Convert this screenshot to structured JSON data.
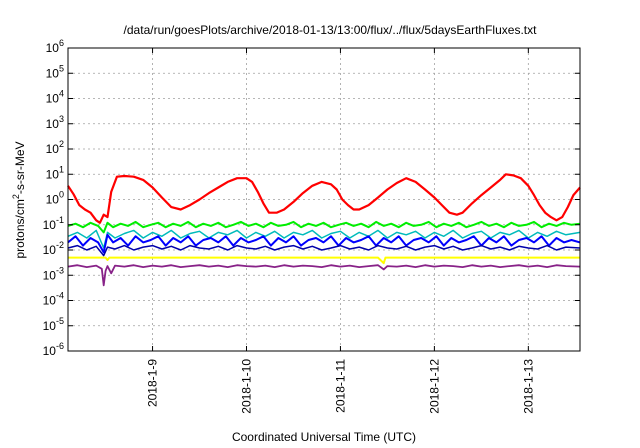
{
  "chart_data": {
    "type": "line",
    "title": "/data/run/goesPlots/archive/2018-01-13/13:00/flux/../flux/5daysEarthFluxes.txt",
    "xlabel": "Coordinated Universal Time (UTC)",
    "ylabel": "protons/cm2-s-sr-MeV",
    "ylabel_parts": {
      "pre": "protons/cm",
      "sup": "2",
      "post": "-s-sr-MeV"
    },
    "yscale": "log",
    "ylim": [
      1e-06,
      1000000.0
    ],
    "xlim": [
      8.1,
      13.55
    ],
    "x_unit": "day of January 2018",
    "grid": "dashed",
    "y_ticks": [
      {
        "base": "10",
        "exp": "-6",
        "value": 1e-06
      },
      {
        "base": "10",
        "exp": "-5",
        "value": 1e-05
      },
      {
        "base": "10",
        "exp": "-4",
        "value": 0.0001
      },
      {
        "base": "10",
        "exp": "-3",
        "value": 0.001
      },
      {
        "base": "10",
        "exp": "-2",
        "value": 0.01
      },
      {
        "base": "10",
        "exp": "-1",
        "value": 0.1
      },
      {
        "base": "10",
        "exp": "0",
        "value": 1
      },
      {
        "base": "10",
        "exp": "1",
        "value": 10
      },
      {
        "base": "10",
        "exp": "2",
        "value": 100
      },
      {
        "base": "10",
        "exp": "3",
        "value": 1000
      },
      {
        "base": "10",
        "exp": "4",
        "value": 10000
      },
      {
        "base": "10",
        "exp": "5",
        "value": 100000
      },
      {
        "base": "10",
        "exp": "6",
        "value": 1000000
      }
    ],
    "x_ticks": [
      {
        "label": "2018-1-9",
        "value": 9
      },
      {
        "label": "2018-1-10",
        "value": 10
      },
      {
        "label": "2018-1-11",
        "value": 11
      },
      {
        "label": "2018-1-12",
        "value": 12
      },
      {
        "label": "2018-1-13",
        "value": 13
      }
    ],
    "series": [
      {
        "color": "#ff0000",
        "width": 2.2,
        "x": [
          8.1,
          8.16,
          8.22,
          8.28,
          8.34,
          8.4,
          8.44,
          8.48,
          8.52,
          8.56,
          8.62,
          8.7,
          8.8,
          8.9,
          9.0,
          9.1,
          9.2,
          9.3,
          9.4,
          9.5,
          9.6,
          9.7,
          9.8,
          9.9,
          10.0,
          10.06,
          10.12,
          10.18,
          10.24,
          10.32,
          10.4,
          10.5,
          10.6,
          10.7,
          10.8,
          10.9,
          10.96,
          11.02,
          11.08,
          11.14,
          11.2,
          11.3,
          11.4,
          11.5,
          11.6,
          11.7,
          11.8,
          11.9,
          12.0,
          12.08,
          12.16,
          12.24,
          12.3,
          12.4,
          12.5,
          12.6,
          12.7,
          12.76,
          12.84,
          12.92,
          13.0,
          13.06,
          13.12,
          13.18,
          13.24,
          13.3,
          13.36,
          13.42,
          13.48,
          13.55
        ],
        "y": [
          3.5,
          1.6,
          0.6,
          0.4,
          0.3,
          0.15,
          0.12,
          0.25,
          0.2,
          2.0,
          8.0,
          8.5,
          8.0,
          6.0,
          3.0,
          1.2,
          0.5,
          0.4,
          0.6,
          1.0,
          1.8,
          3.0,
          5.0,
          7.0,
          7.0,
          5.0,
          2.0,
          0.7,
          0.3,
          0.3,
          0.4,
          0.8,
          1.8,
          3.5,
          5.0,
          4.0,
          2.5,
          1.0,
          0.6,
          0.4,
          0.4,
          0.6,
          1.2,
          2.5,
          4.5,
          7.0,
          5.0,
          2.5,
          1.2,
          0.6,
          0.3,
          0.25,
          0.3,
          0.7,
          1.5,
          3.0,
          6.0,
          10.0,
          9.0,
          7.0,
          3.5,
          1.5,
          0.6,
          0.3,
          0.2,
          0.15,
          0.2,
          0.5,
          1.5,
          3.0
        ]
      },
      {
        "color": "#00ee00",
        "width": 2.0,
        "x": [
          8.1,
          8.18,
          8.26,
          8.34,
          8.42,
          8.48,
          8.52,
          8.58,
          8.66,
          8.74,
          8.82,
          8.9,
          8.98,
          9.06,
          9.14,
          9.22,
          9.3,
          9.38,
          9.46,
          9.54,
          9.62,
          9.7,
          9.78,
          9.86,
          9.94,
          10.02,
          10.1,
          10.18,
          10.26,
          10.34,
          10.42,
          10.5,
          10.58,
          10.66,
          10.74,
          10.82,
          10.9,
          10.98,
          11.06,
          11.14,
          11.22,
          11.3,
          11.38,
          11.46,
          11.54,
          11.62,
          11.7,
          11.78,
          11.86,
          11.94,
          12.02,
          12.1,
          12.18,
          12.26,
          12.34,
          12.42,
          12.5,
          12.58,
          12.66,
          12.74,
          12.82,
          12.9,
          12.98,
          13.06,
          13.14,
          13.22,
          13.3,
          13.38,
          13.46,
          13.55
        ],
        "y": [
          0.09,
          0.11,
          0.08,
          0.12,
          0.09,
          0.05,
          0.12,
          0.08,
          0.11,
          0.09,
          0.13,
          0.08,
          0.1,
          0.12,
          0.08,
          0.11,
          0.09,
          0.13,
          0.08,
          0.11,
          0.09,
          0.12,
          0.08,
          0.1,
          0.13,
          0.09,
          0.11,
          0.08,
          0.12,
          0.09,
          0.1,
          0.13,
          0.08,
          0.11,
          0.09,
          0.12,
          0.08,
          0.1,
          0.12,
          0.09,
          0.11,
          0.08,
          0.13,
          0.09,
          0.11,
          0.08,
          0.12,
          0.09,
          0.1,
          0.13,
          0.08,
          0.11,
          0.09,
          0.12,
          0.08,
          0.1,
          0.13,
          0.09,
          0.11,
          0.08,
          0.12,
          0.09,
          0.1,
          0.13,
          0.08,
          0.11,
          0.09,
          0.12,
          0.1,
          0.11
        ]
      },
      {
        "color": "#00bbbb",
        "width": 1.5,
        "x": [
          8.1,
          8.2,
          8.3,
          8.4,
          8.48,
          8.52,
          8.6,
          8.7,
          8.8,
          8.9,
          9.0,
          9.1,
          9.2,
          9.3,
          9.4,
          9.5,
          9.6,
          9.7,
          9.8,
          9.9,
          10.0,
          10.1,
          10.2,
          10.3,
          10.4,
          10.5,
          10.6,
          10.7,
          10.8,
          10.9,
          11.0,
          11.1,
          11.2,
          11.3,
          11.4,
          11.5,
          11.6,
          11.7,
          11.8,
          11.9,
          12.0,
          12.1,
          12.2,
          12.3,
          12.4,
          12.5,
          12.6,
          12.7,
          12.8,
          12.9,
          13.0,
          13.1,
          13.2,
          13.3,
          13.4,
          13.55
        ],
        "y": [
          0.035,
          0.05,
          0.03,
          0.06,
          0.012,
          0.05,
          0.03,
          0.045,
          0.06,
          0.03,
          0.05,
          0.035,
          0.06,
          0.03,
          0.045,
          0.055,
          0.03,
          0.05,
          0.04,
          0.06,
          0.03,
          0.05,
          0.035,
          0.055,
          0.03,
          0.05,
          0.04,
          0.06,
          0.03,
          0.045,
          0.055,
          0.03,
          0.05,
          0.035,
          0.06,
          0.03,
          0.05,
          0.04,
          0.055,
          0.03,
          0.05,
          0.035,
          0.06,
          0.03,
          0.045,
          0.055,
          0.03,
          0.05,
          0.04,
          0.06,
          0.03,
          0.05,
          0.035,
          0.055,
          0.04,
          0.05
        ]
      },
      {
        "color": "#0000ff",
        "width": 2.0,
        "x": [
          8.1,
          8.18,
          8.26,
          8.34,
          8.42,
          8.48,
          8.52,
          8.58,
          8.66,
          8.74,
          8.82,
          8.9,
          8.98,
          9.06,
          9.14,
          9.22,
          9.3,
          9.38,
          9.46,
          9.54,
          9.62,
          9.7,
          9.78,
          9.86,
          9.94,
          10.02,
          10.1,
          10.18,
          10.26,
          10.34,
          10.42,
          10.5,
          10.58,
          10.66,
          10.74,
          10.82,
          10.9,
          10.98,
          11.06,
          11.14,
          11.22,
          11.3,
          11.38,
          11.46,
          11.54,
          11.62,
          11.7,
          11.78,
          11.86,
          11.94,
          12.02,
          12.1,
          12.18,
          12.26,
          12.34,
          12.42,
          12.5,
          12.58,
          12.66,
          12.74,
          12.82,
          12.9,
          12.98,
          13.06,
          13.14,
          13.22,
          13.3,
          13.38,
          13.46,
          13.55
        ],
        "y": [
          0.02,
          0.035,
          0.015,
          0.03,
          0.02,
          0.008,
          0.04,
          0.02,
          0.03,
          0.015,
          0.035,
          0.02,
          0.025,
          0.035,
          0.015,
          0.03,
          0.02,
          0.035,
          0.015,
          0.025,
          0.03,
          0.02,
          0.035,
          0.015,
          0.03,
          0.02,
          0.025,
          0.035,
          0.015,
          0.03,
          0.02,
          0.035,
          0.015,
          0.025,
          0.03,
          0.02,
          0.035,
          0.015,
          0.03,
          0.02,
          0.025,
          0.035,
          0.015,
          0.03,
          0.02,
          0.035,
          0.015,
          0.025,
          0.03,
          0.02,
          0.035,
          0.015,
          0.03,
          0.02,
          0.025,
          0.035,
          0.015,
          0.03,
          0.02,
          0.035,
          0.015,
          0.025,
          0.03,
          0.02,
          0.035,
          0.015,
          0.03,
          0.02,
          0.025,
          0.02
        ]
      },
      {
        "color": "#0000aa",
        "width": 1.5,
        "x": [
          8.1,
          8.2,
          8.3,
          8.4,
          8.48,
          8.52,
          8.6,
          8.7,
          8.8,
          8.9,
          9.0,
          9.1,
          9.2,
          9.3,
          9.4,
          9.5,
          9.6,
          9.7,
          9.8,
          9.9,
          10.0,
          10.1,
          10.2,
          10.3,
          10.4,
          10.5,
          10.6,
          10.7,
          10.8,
          10.9,
          11.0,
          11.1,
          11.2,
          11.3,
          11.4,
          11.5,
          11.6,
          11.7,
          11.8,
          11.9,
          12.0,
          12.1,
          12.2,
          12.3,
          12.4,
          12.5,
          12.6,
          12.7,
          12.8,
          12.9,
          13.0,
          13.1,
          13.2,
          13.3,
          13.4,
          13.55
        ],
        "y": [
          0.012,
          0.015,
          0.01,
          0.014,
          0.006,
          0.013,
          0.011,
          0.015,
          0.01,
          0.013,
          0.015,
          0.011,
          0.014,
          0.01,
          0.015,
          0.012,
          0.011,
          0.014,
          0.01,
          0.015,
          0.012,
          0.011,
          0.014,
          0.01,
          0.013,
          0.015,
          0.011,
          0.014,
          0.01,
          0.012,
          0.015,
          0.011,
          0.013,
          0.01,
          0.015,
          0.012,
          0.011,
          0.014,
          0.01,
          0.013,
          0.015,
          0.011,
          0.014,
          0.01,
          0.012,
          0.015,
          0.011,
          0.013,
          0.01,
          0.014,
          0.012,
          0.011,
          0.015,
          0.01,
          0.013,
          0.012
        ]
      },
      {
        "color": "#ffff00",
        "width": 2.0,
        "x": [
          8.1,
          8.3,
          8.5,
          8.52,
          8.54,
          8.7,
          9.0,
          9.3,
          9.6,
          9.9,
          10.2,
          10.5,
          10.8,
          11.1,
          11.4,
          11.46,
          11.48,
          11.6,
          11.9,
          12.2,
          12.5,
          12.8,
          13.1,
          13.4,
          13.55
        ],
        "y": [
          0.005,
          0.005,
          0.005,
          0.004,
          0.005,
          0.005,
          0.005,
          0.005,
          0.005,
          0.005,
          0.005,
          0.005,
          0.005,
          0.005,
          0.005,
          0.003,
          0.005,
          0.005,
          0.005,
          0.005,
          0.005,
          0.005,
          0.005,
          0.005,
          0.005
        ]
      },
      {
        "color": "#882288",
        "width": 1.8,
        "x": [
          8.1,
          8.2,
          8.3,
          8.4,
          8.46,
          8.48,
          8.5,
          8.52,
          8.56,
          8.6,
          8.7,
          8.8,
          8.9,
          9.0,
          9.1,
          9.2,
          9.3,
          9.4,
          9.5,
          9.6,
          9.7,
          9.8,
          9.9,
          10.0,
          10.1,
          10.2,
          10.3,
          10.4,
          10.5,
          10.6,
          10.7,
          10.8,
          10.9,
          11.0,
          11.1,
          11.2,
          11.3,
          11.4,
          11.46,
          11.5,
          11.6,
          11.7,
          11.8,
          11.9,
          12.0,
          12.1,
          12.2,
          12.3,
          12.4,
          12.5,
          12.6,
          12.7,
          12.8,
          12.9,
          13.0,
          13.1,
          13.2,
          13.3,
          13.4,
          13.55
        ],
        "y": [
          0.0022,
          0.0025,
          0.0021,
          0.0024,
          0.0018,
          0.0004,
          0.0015,
          0.0023,
          0.0012,
          0.0024,
          0.0022,
          0.0025,
          0.0021,
          0.0024,
          0.0022,
          0.0025,
          0.0021,
          0.0023,
          0.0025,
          0.0022,
          0.0024,
          0.0021,
          0.0025,
          0.0023,
          0.0022,
          0.0024,
          0.0021,
          0.0025,
          0.0022,
          0.0024,
          0.0023,
          0.0021,
          0.0025,
          0.0022,
          0.0024,
          0.0021,
          0.0023,
          0.0025,
          0.0017,
          0.0023,
          0.0022,
          0.0024,
          0.0021,
          0.0025,
          0.0022,
          0.0024,
          0.0023,
          0.0021,
          0.0025,
          0.0022,
          0.0024,
          0.0021,
          0.0023,
          0.0025,
          0.0022,
          0.0024,
          0.0021,
          0.0025,
          0.0023,
          0.0022
        ]
      }
    ]
  }
}
